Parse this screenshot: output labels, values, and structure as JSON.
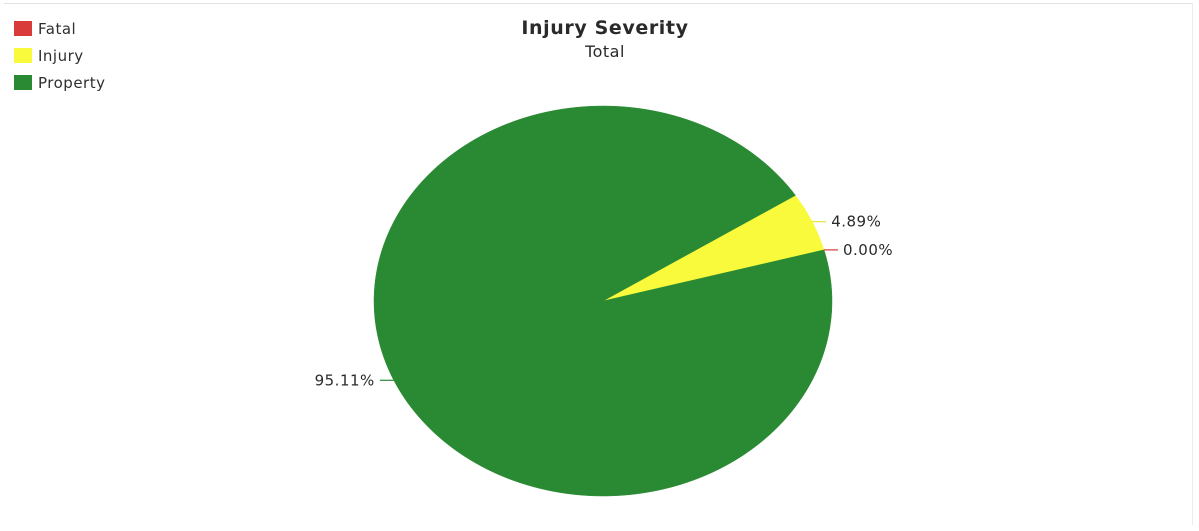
{
  "chart_data": {
    "type": "pie",
    "title": "Injury Severity",
    "subtitle": "Total",
    "legend_position": "top-left",
    "categories": [
      "Fatal",
      "Injury",
      "Property"
    ],
    "values": [
      0.0,
      4.89,
      95.11
    ],
    "value_labels": [
      "0.00%",
      "4.89%",
      "95.11%"
    ],
    "colors": [
      "#d93a3a",
      "#fafa3c",
      "#2a8a33"
    ],
    "legend": [
      {
        "label": "Fatal",
        "color": "#d93a3a"
      },
      {
        "label": "Injury",
        "color": "#fafa3c"
      },
      {
        "label": "Property",
        "color": "#2a8a33"
      }
    ]
  }
}
